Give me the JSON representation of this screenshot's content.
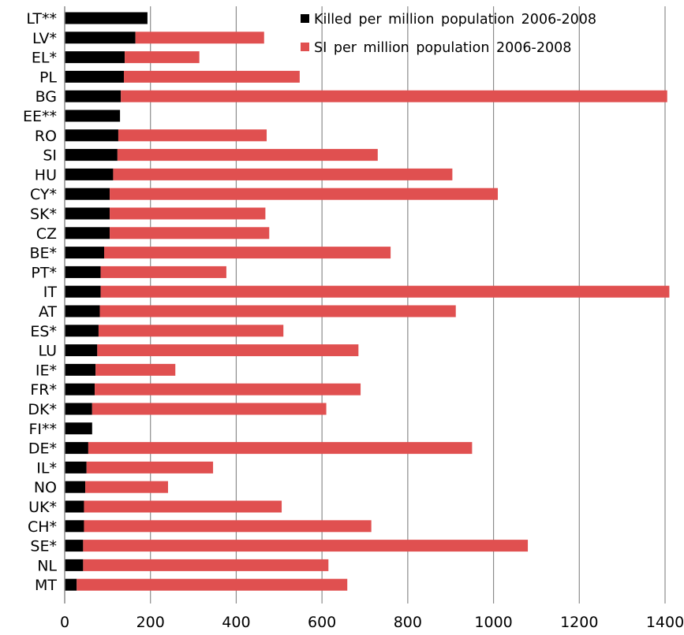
{
  "chart_data": {
    "type": "bar",
    "orientation": "horizontal",
    "stacked": true,
    "categories": [
      "LT**",
      "LV*",
      "EL*",
      "PL",
      "BG",
      "EE**",
      "RO",
      "SI",
      "HU",
      "CY*",
      "SK*",
      "CZ",
      "BE*",
      "PT*",
      "IT",
      "AT",
      "ES*",
      "LU",
      "IE*",
      "FR*",
      "DK*",
      "FI**",
      "DE*",
      "IL*",
      "NO",
      "UK*",
      "CH*",
      "SE*",
      "NL",
      "MT"
    ],
    "series": [
      {
        "name": "Killed per million population 2006-2008",
        "color": "#000000",
        "values": [
          193,
          165,
          140,
          138,
          131,
          129,
          125,
          123,
          113,
          105,
          105,
          105,
          92,
          84,
          84,
          82,
          79,
          76,
          72,
          70,
          64,
          64,
          55,
          51,
          48,
          45,
          45,
          43,
          43,
          28
        ]
      },
      {
        "name": "SI per million population 2006-2008",
        "color": "#e05050",
        "values": [
          0,
          300,
          174,
          410,
          1274,
          0,
          346,
          607,
          791,
          905,
          363,
          372,
          668,
          293,
          1326,
          830,
          431,
          609,
          186,
          620,
          546,
          0,
          895,
          295,
          193,
          461,
          670,
          1037,
          572,
          631
        ]
      }
    ],
    "xlim": [
      0,
      1400
    ],
    "xticks": [
      0,
      200,
      400,
      600,
      800,
      1000,
      1200,
      1400
    ],
    "title": "",
    "xlabel": "",
    "ylabel": "",
    "grid": "vertical",
    "legend_position": "top-right"
  }
}
